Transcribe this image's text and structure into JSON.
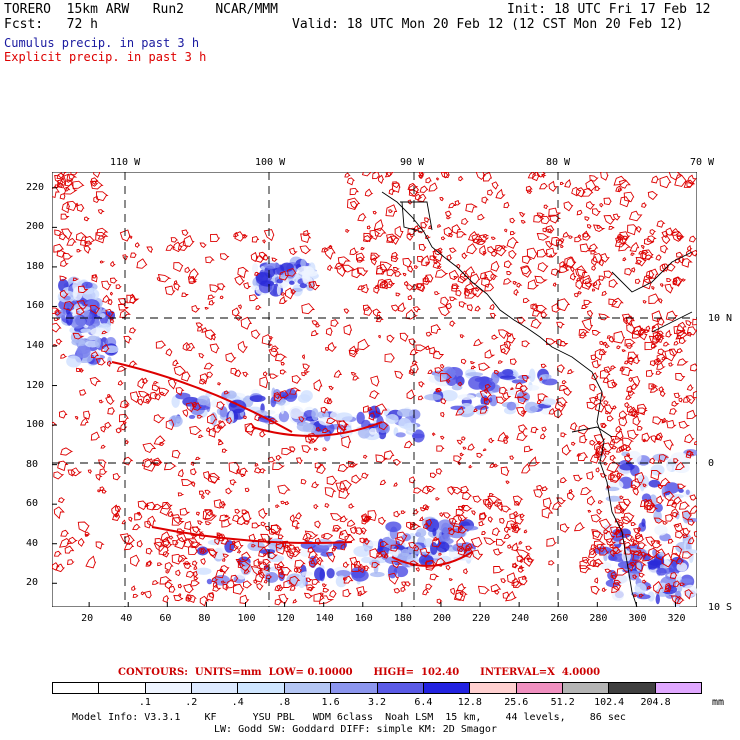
{
  "header": {
    "line1_left": "TORERO  15km ARW   Run2    NCAR/MMM",
    "line1_right": "Init: 18 UTC Fri 17 Feb 12",
    "line2_left": "Fcst:   72 h",
    "line2_right": "Valid: 18 UTC Mon 20 Feb 12 (12 CST Mon 20 Feb 12)",
    "legend_cumulus": "Cumulus precip. in past 3 h",
    "legend_explicit": "Explicit precip. in past 3 h"
  },
  "colors": {
    "cumulus_text": "#1a1aa0",
    "explicit_text": "#dd0000",
    "contour": "#dd0000",
    "coast": "#000000"
  },
  "top_axis_labels": [
    "110 W",
    "100 W",
    "90 W",
    "80 W",
    "70 W"
  ],
  "right_axis_labels": [
    "10 N",
    "0",
    "10 S"
  ],
  "left_axis_labels": [
    "220",
    "200",
    "180",
    "160",
    "140",
    "120",
    "100",
    "80",
    "60",
    "40",
    "20"
  ],
  "bottom_axis_labels": [
    "20",
    "40",
    "60",
    "80",
    "100",
    "120",
    "140",
    "160",
    "180",
    "200",
    "220",
    "240",
    "260",
    "280",
    "300",
    "320"
  ],
  "contour_info": {
    "text": "CONTOURS:  UNITS=mm  LOW= 0.10000      HIGH=  102.40      INTERVAL=X  4.0000"
  },
  "colorbar": {
    "colors": [
      "#ffffff",
      "#ffffff",
      "#eef4ff",
      "#ddeaff",
      "#cfe6ff",
      "#b4c6f4",
      "#8c96ee",
      "#5a5ae6",
      "#2222e0",
      "#ffd0d0",
      "#f090c0",
      "#b4b4b4",
      "#404040",
      "#e0a8ff"
    ],
    "labels": [
      ".1",
      ".2",
      ".4",
      ".8",
      "1.6",
      "3.2",
      "6.4",
      "12.8",
      "25.6",
      "51.2",
      "102.4",
      "204.8"
    ],
    "unit": "mm"
  },
  "footer": {
    "line1": "Model Info: V3.3.1    KF      YSU PBL   WDM 6class  Noah LSM  15 km,    44 levels,    86 sec",
    "line2": "LW: Godd SW: Goddard DIFF: simple KM: 2D Smagor"
  }
}
